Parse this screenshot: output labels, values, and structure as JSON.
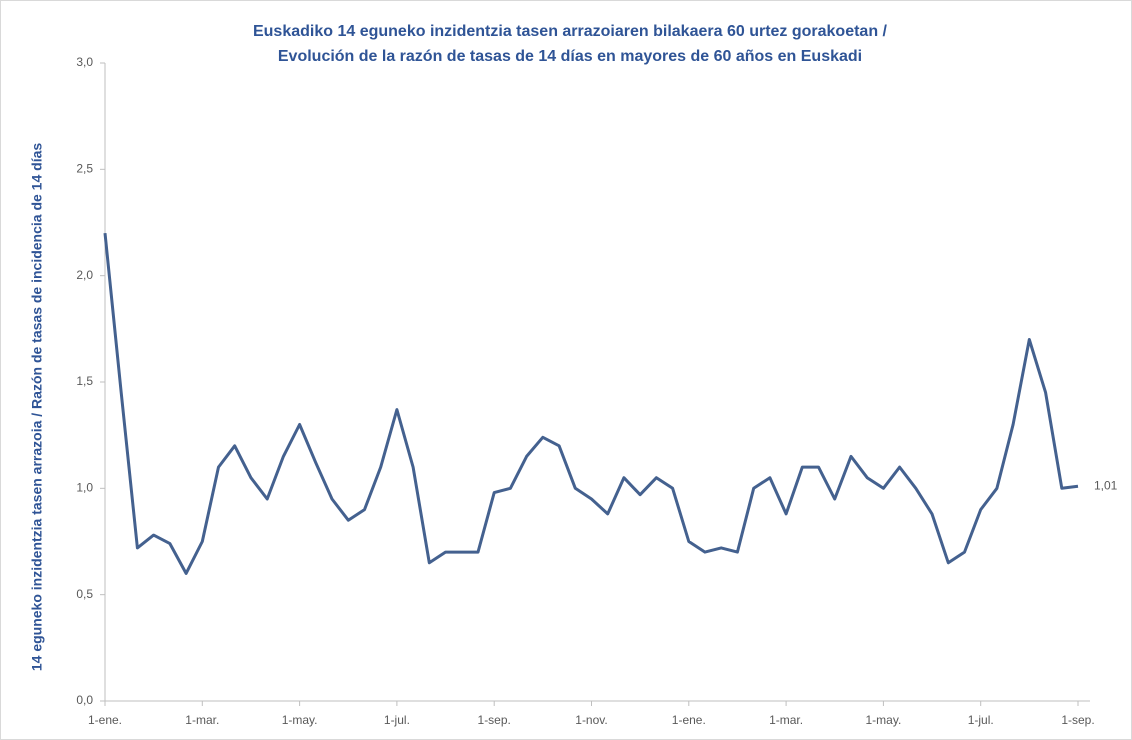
{
  "chart_data": {
    "type": "line",
    "title": [
      "Euskadiko 14 eguneko inzidentzia tasen arrazoiaren bilakaera 60 urtez gorakoetan /",
      "Evolución de la razón de tasas de 14 días en mayores de 60 años en Euskadi"
    ],
    "y_label": "14 eguneko inzidentzia tasen arrazoia / Razón de tasas de  incidencia de 14 días",
    "categories": [
      "1-ene.",
      null,
      null,
      null,
      null,
      null,
      "1-mar.",
      null,
      null,
      null,
      null,
      null,
      "1-may.",
      null,
      null,
      null,
      null,
      null,
      "1-jul.",
      null,
      null,
      null,
      null,
      null,
      "1-sep.",
      null,
      null,
      null,
      null,
      null,
      "1-nov.",
      null,
      null,
      null,
      null,
      null,
      "1-ene.",
      null,
      null,
      null,
      null,
      null,
      "1-mar.",
      null,
      null,
      null,
      null,
      null,
      "1-may.",
      null,
      null,
      null,
      null,
      null,
      "1-jul.",
      null,
      null,
      null,
      null,
      null,
      "1-sep."
    ],
    "series": [
      {
        "name": "Razón",
        "color": "#44618f",
        "values": [
          2.2,
          1.45,
          0.72,
          0.78,
          0.74,
          0.6,
          0.75,
          1.1,
          1.2,
          1.05,
          0.95,
          1.15,
          1.3,
          1.12,
          0.95,
          0.85,
          0.9,
          1.1,
          1.37,
          1.1,
          0.65,
          0.7,
          0.7,
          0.7,
          0.98,
          1.0,
          1.15,
          1.24,
          1.2,
          1.0,
          0.95,
          0.88,
          1.05,
          0.97,
          1.05,
          1.0,
          0.75,
          0.7,
          0.72,
          0.7,
          1.0,
          1.05,
          0.88,
          1.1,
          1.1,
          0.95,
          1.15,
          1.05,
          1.0,
          1.1,
          1.0,
          0.88,
          0.65,
          0.7,
          0.9,
          1.0,
          1.3,
          1.7,
          1.45,
          1.0,
          1.01
        ],
        "value_labels": [
          null,
          null,
          null,
          null,
          null,
          null,
          null,
          null,
          null,
          null,
          null,
          null,
          null,
          null,
          null,
          null,
          null,
          null,
          null,
          null,
          null,
          null,
          null,
          null,
          null,
          null,
          null,
          null,
          null,
          null,
          null,
          null,
          null,
          null,
          null,
          null,
          null,
          null,
          null,
          null,
          null,
          null,
          null,
          null,
          null,
          null,
          null,
          null,
          null,
          null,
          null,
          null,
          null,
          null,
          null,
          null,
          null,
          null,
          null,
          null,
          "1,01"
        ]
      }
    ],
    "ylim": [
      0,
      3
    ],
    "yticks": [
      {
        "value": 0,
        "label": "0,0"
      },
      {
        "value": 0.5,
        "label": "0,5"
      },
      {
        "value": 1,
        "label": "1,0"
      },
      {
        "value": 1.5,
        "label": "1,5"
      },
      {
        "value": 2,
        "label": "2,0"
      },
      {
        "value": 2.5,
        "label": "2,5"
      },
      {
        "value": 3,
        "label": "3,0"
      }
    ],
    "grid": false
  }
}
